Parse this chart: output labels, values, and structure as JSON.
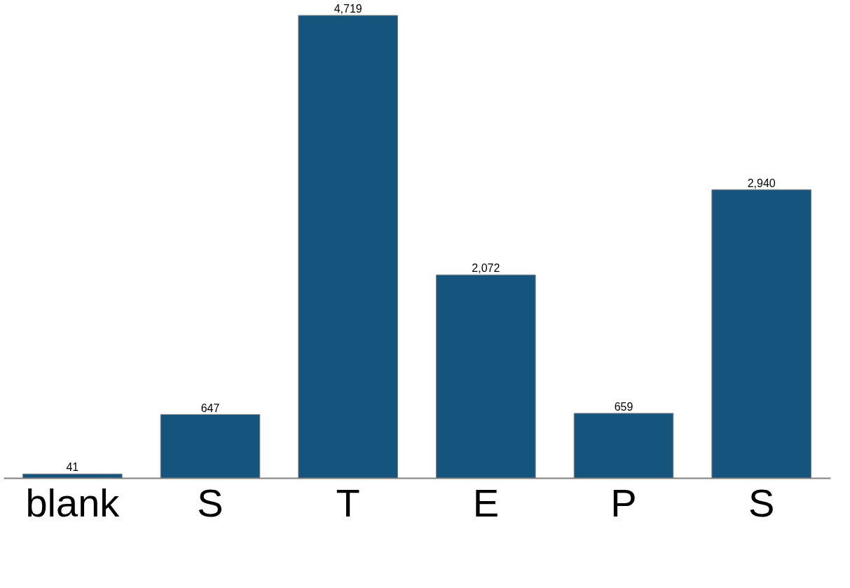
{
  "chart_data": {
    "type": "bar",
    "categories": [
      "blank",
      "S",
      "T",
      "E",
      "P",
      "S"
    ],
    "values": [
      41,
      647,
      4719,
      2072,
      659,
      2940
    ],
    "value_labels": [
      "41",
      "647",
      "4,719",
      "2,072",
      "659",
      "2,940"
    ],
    "color": "#15557d",
    "grid": false
  }
}
